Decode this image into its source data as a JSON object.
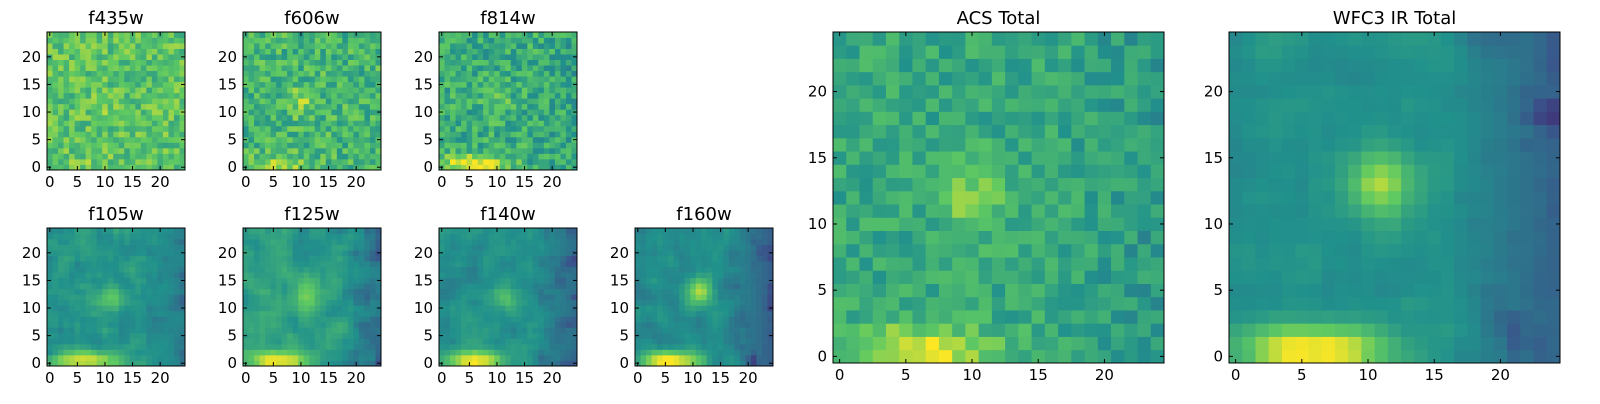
{
  "colors": {
    "colormap": "viridis",
    "stops": [
      "#440154",
      "#3b528b",
      "#21918c",
      "#5ec962",
      "#fde725"
    ],
    "frame": "#000000",
    "background": "#ffffff"
  },
  "chart_data": [
    {
      "type": "heatmap",
      "title": "f435w",
      "grid_size": 25,
      "xlim": [
        0,
        25
      ],
      "ylim": [
        0,
        25
      ],
      "x_ticks": [
        "0",
        "5",
        "10",
        "15",
        "20"
      ],
      "y_ticks": [
        "0",
        "5",
        "10",
        "15",
        "20"
      ],
      "pattern": "noisy",
      "peak": [
        10,
        11
      ],
      "peak_strength": 0.05,
      "mean_level": 0.72,
      "noise": 0.28,
      "bottom_glow": 0.05,
      "dark_right": 0.0,
      "seed": 11
    },
    {
      "type": "heatmap",
      "title": "f606w",
      "grid_size": 25,
      "xlim": [
        0,
        25
      ],
      "ylim": [
        0,
        25
      ],
      "x_ticks": [
        "0",
        "5",
        "10",
        "15",
        "20"
      ],
      "y_ticks": [
        "0",
        "5",
        "10",
        "15",
        "20"
      ],
      "pattern": "noisy",
      "peak": [
        10,
        12
      ],
      "peak_strength": 0.18,
      "mean_level": 0.66,
      "noise": 0.3,
      "bottom_glow": 0.2,
      "dark_right": 0.0,
      "seed": 23
    },
    {
      "type": "heatmap",
      "title": "f814w",
      "grid_size": 25,
      "xlim": [
        0,
        25
      ],
      "ylim": [
        0,
        25
      ],
      "x_ticks": [
        "0",
        "5",
        "10",
        "15",
        "20"
      ],
      "y_ticks": [
        "0",
        "5",
        "10",
        "15",
        "20"
      ],
      "pattern": "noisy",
      "peak": [
        10,
        12
      ],
      "peak_strength": 0.12,
      "mean_level": 0.62,
      "noise": 0.3,
      "bottom_glow": 0.45,
      "dark_right": 0.05,
      "seed": 37
    },
    {
      "type": "heatmap",
      "title": "f105w",
      "grid_size": 25,
      "xlim": [
        0,
        25
      ],
      "ylim": [
        0,
        25
      ],
      "x_ticks": [
        "0",
        "5",
        "10",
        "15",
        "20"
      ],
      "y_ticks": [
        "0",
        "5",
        "10",
        "15",
        "20"
      ],
      "pattern": "smooth",
      "peak": [
        11,
        12
      ],
      "peak_strength": 0.2,
      "mean_level": 0.52,
      "noise": 0.16,
      "bottom_glow": 0.45,
      "dark_right": 0.18,
      "seed": 41
    },
    {
      "type": "heatmap",
      "title": "f125w",
      "grid_size": 25,
      "xlim": [
        0,
        25
      ],
      "ylim": [
        0,
        25
      ],
      "x_ticks": [
        "0",
        "5",
        "10",
        "15",
        "20"
      ],
      "y_ticks": [
        "0",
        "5",
        "10",
        "15",
        "20"
      ],
      "pattern": "smooth",
      "peak": [
        11,
        12
      ],
      "peak_strength": 0.25,
      "mean_level": 0.55,
      "noise": 0.16,
      "bottom_glow": 0.5,
      "dark_right": 0.22,
      "seed": 53
    },
    {
      "type": "heatmap",
      "title": "f140w",
      "grid_size": 25,
      "xlim": [
        0,
        25
      ],
      "ylim": [
        0,
        25
      ],
      "x_ticks": [
        "0",
        "5",
        "10",
        "15",
        "20"
      ],
      "y_ticks": [
        "0",
        "5",
        "10",
        "15",
        "20"
      ],
      "pattern": "smooth",
      "peak": [
        11,
        12
      ],
      "peak_strength": 0.18,
      "mean_level": 0.5,
      "noise": 0.14,
      "bottom_glow": 0.55,
      "dark_right": 0.25,
      "seed": 67
    },
    {
      "type": "heatmap",
      "title": "f160w",
      "grid_size": 25,
      "xlim": [
        0,
        25
      ],
      "ylim": [
        0,
        25
      ],
      "x_ticks": [
        "0",
        "5",
        "10",
        "15",
        "20"
      ],
      "y_ticks": [
        "0",
        "5",
        "10",
        "15",
        "20"
      ],
      "pattern": "smooth",
      "peak": [
        11,
        13
      ],
      "peak_strength": 0.4,
      "mean_level": 0.48,
      "noise": 0.14,
      "bottom_glow": 0.6,
      "dark_right": 0.32,
      "seed": 79
    },
    {
      "type": "heatmap",
      "title": "ACS Total",
      "grid_size": 25,
      "xlim": [
        0,
        25
      ],
      "ylim": [
        0,
        25
      ],
      "x_ticks": [
        "0",
        "5",
        "10",
        "15",
        "20"
      ],
      "y_ticks": [
        "0",
        "5",
        "10",
        "15",
        "20"
      ],
      "pattern": "noisy",
      "peak": [
        10,
        12
      ],
      "peak_strength": 0.22,
      "mean_level": 0.6,
      "noise": 0.2,
      "bottom_glow": 0.4,
      "dark_right": 0.1,
      "seed": 97
    },
    {
      "type": "heatmap",
      "title": "WFC3 IR Total",
      "grid_size": 25,
      "xlim": [
        0,
        25
      ],
      "ylim": [
        0,
        25
      ],
      "x_ticks": [
        "0",
        "5",
        "10",
        "15",
        "20"
      ],
      "y_ticks": [
        "0",
        "5",
        "10",
        "15",
        "20"
      ],
      "pattern": "smooth",
      "peak": [
        11,
        13
      ],
      "peak_strength": 0.35,
      "mean_level": 0.5,
      "noise": 0.09,
      "bottom_glow": 0.55,
      "dark_right": 0.32,
      "seed": 113
    }
  ]
}
